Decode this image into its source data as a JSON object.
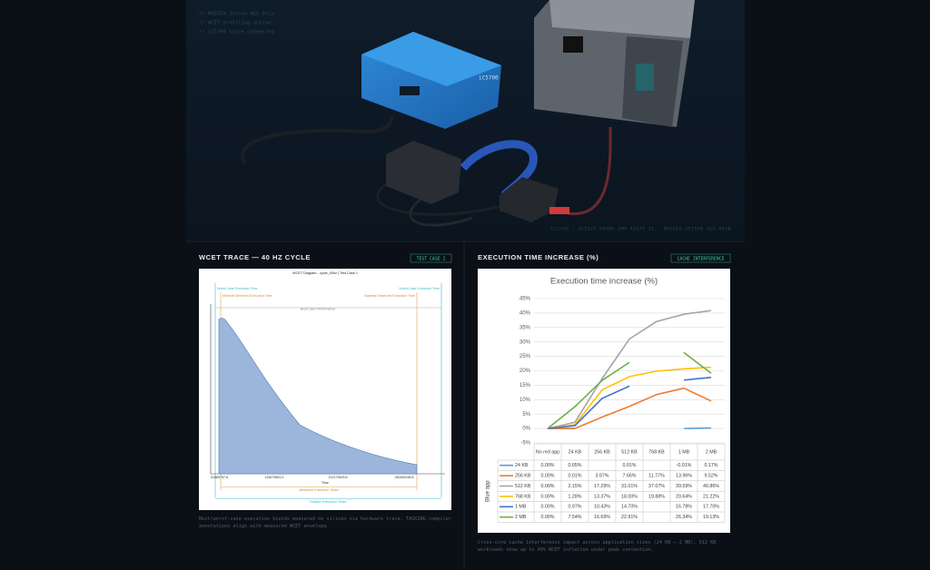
{
  "hero": {
    "console": [
      "// NVIDIA Jetson AGX Orin",
      "// WCET profiling active",
      "// iC5700 trace connected"
    ],
    "device_label": "iC5700",
    "caption": "IC5700 · ACTIVE PROBE AMP RSSTP IC · NVIDIA JETSON AGX ORIN"
  },
  "panels": [
    {
      "title": "WCET TRACE — 40 HZ CYCLE",
      "badge": "TEST CASE 1",
      "caption": "Best/worst-case execution bounds measured on silicon via hardware trace. TASKING compiler annotations align with measured WCET envelope.",
      "diagram": {
        "title": "WCET Diagram - cycle_40hz | Test Case 1",
        "wcet_left": "Worst-Case Execution Time",
        "wcet_right": "Worst-Case Execution Time",
        "min_observed": "Minimal Observed Execution Time",
        "max_observed": "Maximal Observed Execution Time",
        "best_case": "Best-Case Performance",
        "x_labels": [
          "51589757.8",
          "115679851.0",
          "212179425.8",
          "282465156.8"
        ],
        "x_title": "Time",
        "measured": "Measured Execution Times",
        "possible": "Possible Execution Times"
      }
    },
    {
      "title": "EXECUTION TIME INCREASE (%)",
      "badge": "CACHE INTERFERENCE",
      "caption": "Cross-core cache interference impact across application sizes (24 KB – 2 MB). 512 KB workloads show up to 40% WCET inflation under peak contention."
    }
  ],
  "chart_data": {
    "type": "line",
    "title": "Execution time increase (%)",
    "table_row_title": "Blue app",
    "categories": [
      "No red app",
      "24 KB",
      "256 KB",
      "512 KB",
      "768 KB",
      "1 MB",
      "2 MB"
    ],
    "ylim": [
      -5,
      45
    ],
    "yticks": [
      {
        "value": -5,
        "label": "-5%"
      },
      {
        "value": 0,
        "label": "0%"
      },
      {
        "value": 5,
        "label": "5%"
      },
      {
        "value": 10,
        "label": "10%"
      },
      {
        "value": 15,
        "label": "15%"
      },
      {
        "value": 20,
        "label": "20%"
      },
      {
        "value": 25,
        "label": "25%"
      },
      {
        "value": 30,
        "label": "30%"
      },
      {
        "value": 35,
        "label": "35%"
      },
      {
        "value": 40,
        "label": "40%"
      },
      {
        "value": 45,
        "label": "45%"
      }
    ],
    "grid": true,
    "series": [
      {
        "name": "24 KB",
        "color": "#5b9bd5",
        "values": [
          0,
          0.05,
          null,
          0.01,
          null,
          -0.01,
          0.17
        ],
        "value_labels": [
          "0.00%",
          "0.05%",
          null,
          "0.01%",
          null,
          "-0.01%",
          "0.17%"
        ]
      },
      {
        "name": "256 KB",
        "color": "#ed7d31",
        "values": [
          0,
          0.01,
          3.97,
          7.66,
          11.77,
          13.96,
          9.52
        ],
        "value_labels": [
          "0.00%",
          "0.01%",
          "3.97%",
          "7.66%",
          "11.77%",
          "13.96%",
          "9.52%"
        ]
      },
      {
        "name": "512 KB",
        "color": "#a5a5a5",
        "values": [
          0,
          2.15,
          17.29,
          31.01,
          37.07,
          39.59,
          40.86
        ],
        "value_labels": [
          "0.00%",
          "2.15%",
          "17.29%",
          "31.01%",
          "37.07%",
          "39.59%",
          "40.86%"
        ]
      },
      {
        "name": "768 KB",
        "color": "#ffc000",
        "values": [
          0,
          1.28,
          13.37,
          18.0,
          19.88,
          20.64,
          21.22
        ],
        "value_labels": [
          "0.00%",
          "1.28%",
          "13.37%",
          "18.00%",
          "19.88%",
          "20.64%",
          "21.22%"
        ]
      },
      {
        "name": "1 MB",
        "color": "#4472c4",
        "values": [
          0,
          0.97,
          10.43,
          14.7,
          null,
          16.78,
          17.7
        ],
        "value_labels": [
          "0.00%",
          "0.97%",
          "10.43%",
          "14.70%",
          null,
          "16.78%",
          "17.70%"
        ]
      },
      {
        "name": "2 MB",
        "color": "#70ad47",
        "values": [
          0,
          7.54,
          16.69,
          22.91,
          null,
          26.34,
          19.13
        ],
        "value_labels": [
          "0.00%",
          "7.54%",
          "16.69%",
          "22.91%",
          null,
          "26.34%",
          "19.13%"
        ]
      }
    ]
  }
}
